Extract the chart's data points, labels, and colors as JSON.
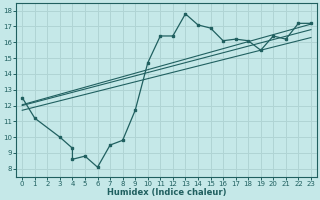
{
  "xlabel": "Humidex (Indice chaleur)",
  "bg_color": "#c5e8e8",
  "grid_color": "#b0d4d4",
  "line_color": "#206060",
  "xlim": [
    -0.5,
    23.5
  ],
  "ylim": [
    7.5,
    18.5
  ],
  "xticks": [
    0,
    1,
    2,
    3,
    4,
    5,
    6,
    7,
    8,
    9,
    10,
    11,
    12,
    13,
    14,
    15,
    16,
    17,
    18,
    19,
    20,
    21,
    22,
    23
  ],
  "yticks": [
    8,
    9,
    10,
    11,
    12,
    13,
    14,
    15,
    16,
    17,
    18
  ],
  "jagged_x": [
    0,
    1,
    3,
    4,
    4,
    5,
    6,
    7,
    8,
    9,
    10,
    11,
    12,
    13,
    14,
    15,
    16,
    17,
    18,
    19,
    20,
    21,
    22,
    23
  ],
  "jagged_y": [
    12.5,
    11.2,
    10.0,
    9.3,
    8.6,
    8.8,
    8.1,
    9.5,
    9.8,
    11.7,
    14.7,
    16.4,
    16.4,
    17.8,
    17.1,
    16.9,
    16.1,
    16.2,
    16.1,
    15.5,
    16.4,
    16.2,
    17.2,
    17.2
  ],
  "line1_x": [
    0,
    23
  ],
  "line1_y": [
    12.05,
    17.15
  ],
  "line2_x": [
    0,
    23
  ],
  "line2_y": [
    11.7,
    16.3
  ],
  "line3_x": [
    0,
    23
  ],
  "line3_y": [
    12.0,
    16.8
  ],
  "xlabel_fontsize": 6,
  "tick_fontsize": 5
}
